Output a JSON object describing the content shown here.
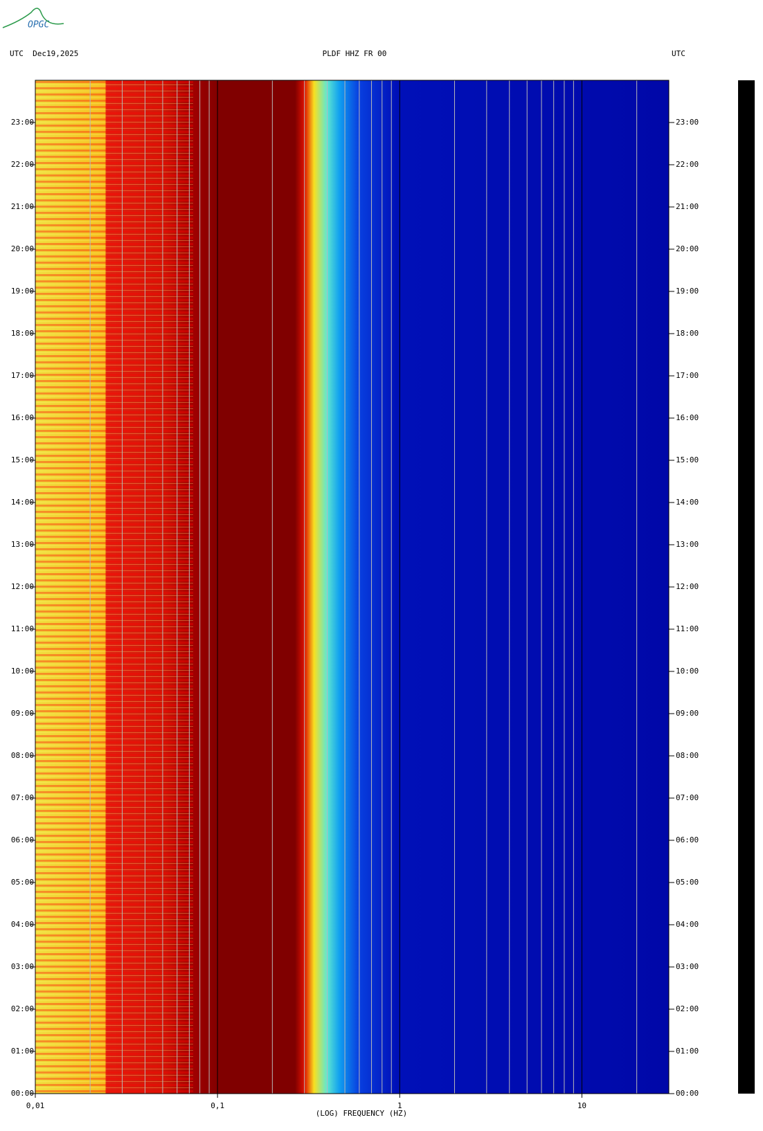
{
  "logo": "OPGC",
  "chart_data": {
    "type": "spectrogram",
    "title": "PLDF HHZ FR 00",
    "header_left": "UTC  Dec19,2025",
    "header_right": "UTC",
    "xlabel": "(LOG) FREQUENCY (HZ)",
    "xscale": "log",
    "xlim": [
      0.01,
      30
    ],
    "xticks": [
      {
        "value": 0.01,
        "label": "0,01"
      },
      {
        "value": 0.1,
        "label": "0,1"
      },
      1,
      10
    ],
    "ylim": [
      0,
      24
    ],
    "yticks": [
      {
        "value": 0,
        "label": "00:00"
      },
      {
        "value": 1,
        "label": "01:00"
      },
      {
        "value": 2,
        "label": "02:00"
      },
      {
        "value": 3,
        "label": "03:00"
      },
      {
        "value": 4,
        "label": "04:00"
      },
      {
        "value": 5,
        "label": "05:00"
      },
      {
        "value": 6,
        "label": "06:00"
      },
      {
        "value": 7,
        "label": "07:00"
      },
      {
        "value": 8,
        "label": "08:00"
      },
      {
        "value": 9,
        "label": "09:00"
      },
      {
        "value": 10,
        "label": "10:00"
      },
      {
        "value": 11,
        "label": "11:00"
      },
      {
        "value": 12,
        "label": "12:00"
      },
      {
        "value": 13,
        "label": "13:00"
      },
      {
        "value": 14,
        "label": "14:00"
      },
      {
        "value": 15,
        "label": "15:00"
      },
      {
        "value": 16,
        "label": "16:00"
      },
      {
        "value": 17,
        "label": "17:00"
      },
      {
        "value": 18,
        "label": "18:00"
      },
      {
        "value": 19,
        "label": "19:00"
      },
      {
        "value": 20,
        "label": "20:00"
      },
      {
        "value": 21,
        "label": "21:00"
      },
      {
        "value": 22,
        "label": "22:00"
      },
      {
        "value": 23,
        "label": "23:00"
      }
    ],
    "grid": true
  }
}
